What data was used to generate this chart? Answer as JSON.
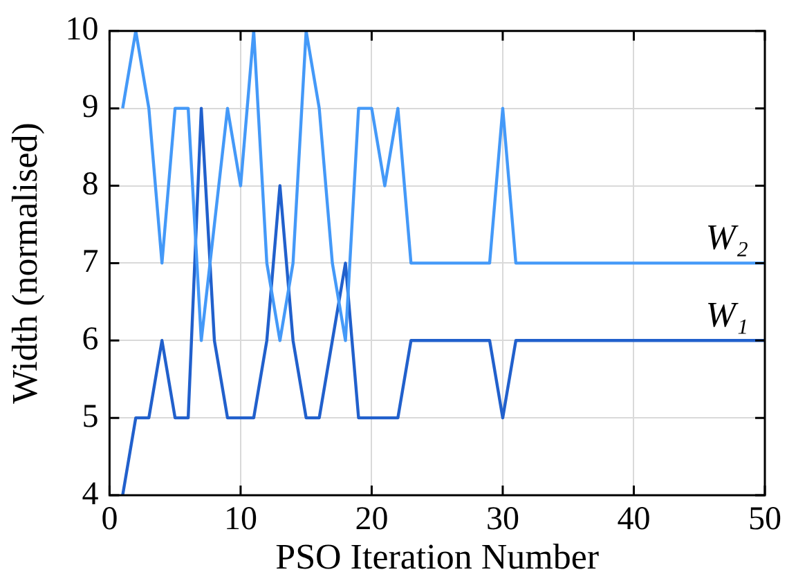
{
  "chart_data": {
    "type": "line",
    "xlabel": "PSO Iteration Number",
    "ylabel": "Width (normalised)",
    "x": [
      1,
      2,
      3,
      4,
      5,
      6,
      7,
      8,
      9,
      10,
      11,
      12,
      13,
      14,
      15,
      16,
      17,
      18,
      19,
      20,
      21,
      22,
      23,
      24,
      25,
      26,
      27,
      28,
      29,
      30,
      31,
      32,
      33,
      34,
      35,
      36,
      37,
      38,
      39,
      40,
      41,
      42,
      43,
      44,
      45,
      46,
      47,
      48,
      49,
      50
    ],
    "series": [
      {
        "name": "W₂",
        "color": "#4499f8",
        "values": [
          9,
          10,
          9,
          7,
          9,
          9,
          6,
          7.5,
          9,
          8,
          10,
          7,
          6,
          7,
          10,
          9,
          7,
          6,
          9,
          9,
          8,
          9,
          7,
          7,
          7,
          7,
          7,
          7,
          7,
          9,
          7,
          7,
          7,
          7,
          7,
          7,
          7,
          7,
          7,
          7,
          7,
          7,
          7,
          7,
          7,
          7,
          7,
          7,
          7,
          7
        ]
      },
      {
        "name": "W₁",
        "color": "#2160cc",
        "values": [
          4,
          5,
          5,
          6,
          5,
          5,
          9,
          6,
          5,
          5,
          5,
          6,
          8,
          6,
          5,
          5,
          6,
          7,
          5,
          5,
          5,
          5,
          6,
          6,
          6,
          6,
          6,
          6,
          6,
          5,
          6,
          6,
          6,
          6,
          6,
          6,
          6,
          6,
          6,
          6,
          6,
          6,
          6,
          6,
          6,
          6,
          6,
          6,
          6,
          6
        ]
      }
    ],
    "xlim": [
      0,
      50
    ],
    "xticks": [
      0,
      10,
      20,
      30,
      40,
      50
    ],
    "ylim": [
      4,
      10
    ],
    "yticks": [
      4,
      5,
      6,
      7,
      8,
      9,
      10
    ],
    "grid": true,
    "legend": false,
    "marker": "none",
    "line_style": "solid"
  }
}
